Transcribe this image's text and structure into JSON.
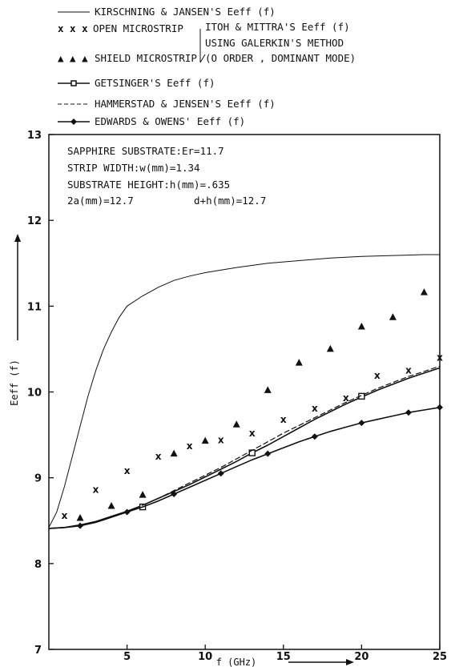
{
  "chart_data": {
    "type": "line",
    "xlabel": "f (GHz)",
    "ylabel": "Eeff (f)",
    "xlim": [
      0,
      25
    ],
    "ylim": [
      7,
      13
    ],
    "x_ticks": [
      "5",
      "10",
      "15",
      "20",
      "25"
    ],
    "y_ticks": [
      "7",
      "8",
      "9",
      "10",
      "11",
      "12",
      "13"
    ],
    "legend": [
      {
        "label": "KIRSCHNING & JANSEN'S Eeff (f)",
        "marker": "none",
        "dash": "solid"
      },
      {
        "label": "OPEN MICROSTRIP",
        "marker": "x"
      },
      {
        "label": "SHIELD MICROSTRIP",
        "marker": "triangle"
      },
      {
        "label": "GETSINGER'S Eeff (f)",
        "marker": "square"
      },
      {
        "label": "HAMMERSTAD & JENSEN'S Eeff (f)",
        "marker": "none",
        "dash": "dashed"
      },
      {
        "label": "EDWARDS & OWENS' Eeff (f)",
        "marker": "diamond"
      }
    ],
    "bracket_text": [
      "ITOH & MITTRA'S Eeff (f)",
      "USING GALERKIN'S METHOD",
      "(O ORDER , DOMINANT MODE)"
    ],
    "annotation": [
      "SAPPHIRE SUBSTRATE:Er=11.7",
      "STRIP WIDTH:w(mm)=1.34",
      "SUBSTRATE HEIGHT:h(mm)=.635",
      "2a(mm)=12.7          d+h(mm)=12.7"
    ],
    "series": [
      {
        "name": "KIRSCHNING & JANSEN'S Eeff (f)",
        "style": "thin",
        "x": [
          0,
          0.5,
          1,
          1.5,
          2,
          2.5,
          3,
          3.5,
          4,
          4.5,
          5,
          6,
          7,
          8,
          9,
          10,
          12,
          14,
          16,
          18,
          20,
          22,
          24,
          25
        ],
        "y": [
          8.42,
          8.6,
          8.9,
          9.25,
          9.6,
          9.95,
          10.25,
          10.5,
          10.7,
          10.87,
          11.0,
          11.12,
          11.22,
          11.3,
          11.35,
          11.39,
          11.45,
          11.5,
          11.53,
          11.56,
          11.58,
          11.59,
          11.6,
          11.6
        ]
      },
      {
        "name": "OPEN MICROSTRIP",
        "marker": "x",
        "x": [
          1,
          3,
          5,
          7,
          9,
          11,
          13,
          15,
          17,
          19,
          21,
          23,
          25
        ],
        "y": [
          8.56,
          8.86,
          9.08,
          9.25,
          9.37,
          9.44,
          9.52,
          9.68,
          9.81,
          9.93,
          10.19,
          10.25,
          10.4
        ]
      },
      {
        "name": "SHIELD MICROSTRIP",
        "marker": "triangle",
        "x": [
          2,
          4,
          6,
          8,
          10,
          12,
          14,
          16,
          18,
          20,
          22,
          24
        ],
        "y": [
          8.53,
          8.67,
          8.8,
          9.28,
          9.43,
          9.62,
          10.02,
          10.34,
          10.5,
          10.76,
          10.87,
          11.16
        ]
      },
      {
        "name": "GETSINGER'S Eeff (f)",
        "marker": "square",
        "x": [
          0,
          1,
          2,
          3,
          4,
          5,
          6,
          7,
          8,
          9,
          10,
          11,
          12,
          13,
          14,
          15,
          16,
          17,
          18,
          19,
          20,
          21,
          22,
          23,
          24,
          25
        ],
        "y": [
          8.41,
          8.42,
          8.45,
          8.49,
          8.55,
          8.61,
          8.68,
          8.76,
          8.84,
          8.92,
          9.01,
          9.1,
          9.19,
          9.29,
          9.38,
          9.48,
          9.58,
          9.68,
          9.77,
          9.86,
          9.94,
          10.02,
          10.09,
          10.16,
          10.22,
          10.28
        ],
        "marker_x": [
          6,
          13,
          20
        ],
        "marker_y": [
          8.66,
          9.29,
          9.95
        ]
      },
      {
        "name": "HAMMERSTAD & JENSEN'S Eeff (f)",
        "style": "dashed",
        "x": [
          0,
          1,
          2,
          3,
          4,
          5,
          6,
          7,
          8,
          9,
          10,
          11,
          12,
          13,
          14,
          15,
          16,
          17,
          18,
          19,
          20,
          21,
          22,
          23,
          24,
          25
        ],
        "y": [
          8.41,
          8.42,
          8.45,
          8.49,
          8.55,
          8.61,
          8.68,
          8.76,
          8.85,
          8.94,
          9.03,
          9.12,
          9.22,
          9.32,
          9.42,
          9.52,
          9.61,
          9.7,
          9.79,
          9.88,
          9.96,
          10.04,
          10.11,
          10.18,
          10.24,
          10.3
        ]
      },
      {
        "name": "EDWARDS & OWENS' Eeff (f)",
        "marker": "diamond",
        "x": [
          0,
          1,
          2,
          3,
          4,
          5,
          6,
          7,
          8,
          9,
          10,
          11,
          12,
          13,
          14,
          15,
          16,
          17,
          18,
          19,
          20,
          21,
          22,
          23,
          24,
          25
        ],
        "y": [
          8.41,
          8.42,
          8.44,
          8.48,
          8.54,
          8.6,
          8.66,
          8.73,
          8.81,
          8.89,
          8.97,
          9.05,
          9.13,
          9.21,
          9.28,
          9.35,
          9.42,
          9.48,
          9.54,
          9.59,
          9.64,
          9.68,
          9.72,
          9.76,
          9.79,
          9.82
        ],
        "marker_x": [
          2,
          5,
          8,
          11,
          14,
          17,
          20,
          23,
          25
        ],
        "marker_y": [
          8.44,
          8.6,
          8.81,
          9.05,
          9.28,
          9.48,
          9.64,
          9.76,
          9.82
        ]
      }
    ]
  }
}
